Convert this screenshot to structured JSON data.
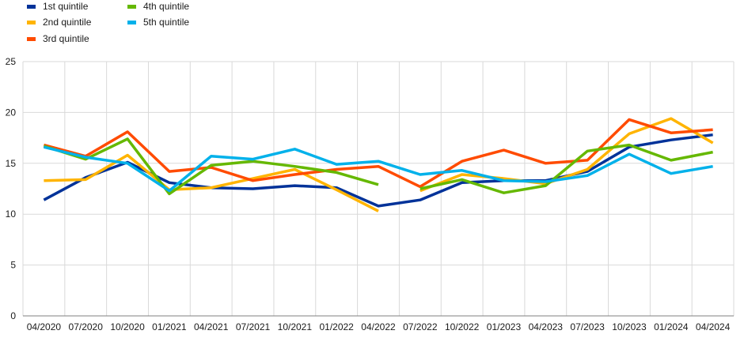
{
  "chart_data": {
    "type": "line",
    "title": "",
    "xlabel": "",
    "ylabel": "",
    "ylim": [
      0,
      25
    ],
    "yticks": [
      0,
      5,
      10,
      15,
      20,
      25
    ],
    "grid": "vertical and horizontal",
    "legend_position": "top-left",
    "categories": [
      "04/2020",
      "07/2020",
      "10/2020",
      "01/2021",
      "04/2021",
      "07/2021",
      "10/2021",
      "01/2022",
      "04/2022",
      "07/2022",
      "10/2022",
      "01/2023",
      "04/2023",
      "07/2023",
      "10/2023",
      "01/2024",
      "04/2024"
    ],
    "series": [
      {
        "name": "1st quintile",
        "color": "#003299",
        "values": [
          11.4,
          13.6,
          15.1,
          13.1,
          12.6,
          12.5,
          12.8,
          12.6,
          10.8,
          11.4,
          13.1,
          13.3,
          13.3,
          14.2,
          16.6,
          17.3,
          17.8
        ],
        "break_after": []
      },
      {
        "name": "2nd quintile",
        "color": "#FFB400",
        "values": [
          13.3,
          13.4,
          15.8,
          12.4,
          12.6,
          13.5,
          14.4,
          12.4,
          10.3,
          12.3,
          13.9,
          13.5,
          13.0,
          14.4,
          17.9,
          19.4,
          17.0
        ],
        "break_after": [
          8
        ]
      },
      {
        "name": "3rd quintile",
        "color": "#FF4B00",
        "values": [
          16.8,
          15.7,
          18.1,
          14.2,
          14.6,
          13.3,
          13.9,
          14.4,
          14.7,
          12.7,
          15.2,
          16.3,
          15.0,
          15.3,
          19.3,
          18.0,
          18.3
        ],
        "break_after": []
      },
      {
        "name": "4th quintile",
        "color": "#65B800",
        "values": [
          16.7,
          15.4,
          17.4,
          12.0,
          14.8,
          15.2,
          14.7,
          14.1,
          12.9,
          12.5,
          13.4,
          12.1,
          12.8,
          16.2,
          16.8,
          15.3,
          16.1
        ],
        "break_after": [
          8
        ]
      },
      {
        "name": "5th quintile",
        "color": "#00B1EA",
        "values": [
          16.6,
          15.6,
          15.0,
          12.3,
          15.7,
          15.4,
          16.4,
          14.9,
          15.2,
          13.9,
          14.3,
          13.3,
          13.2,
          13.8,
          15.9,
          14.0,
          14.7
        ],
        "break_after": []
      }
    ]
  }
}
